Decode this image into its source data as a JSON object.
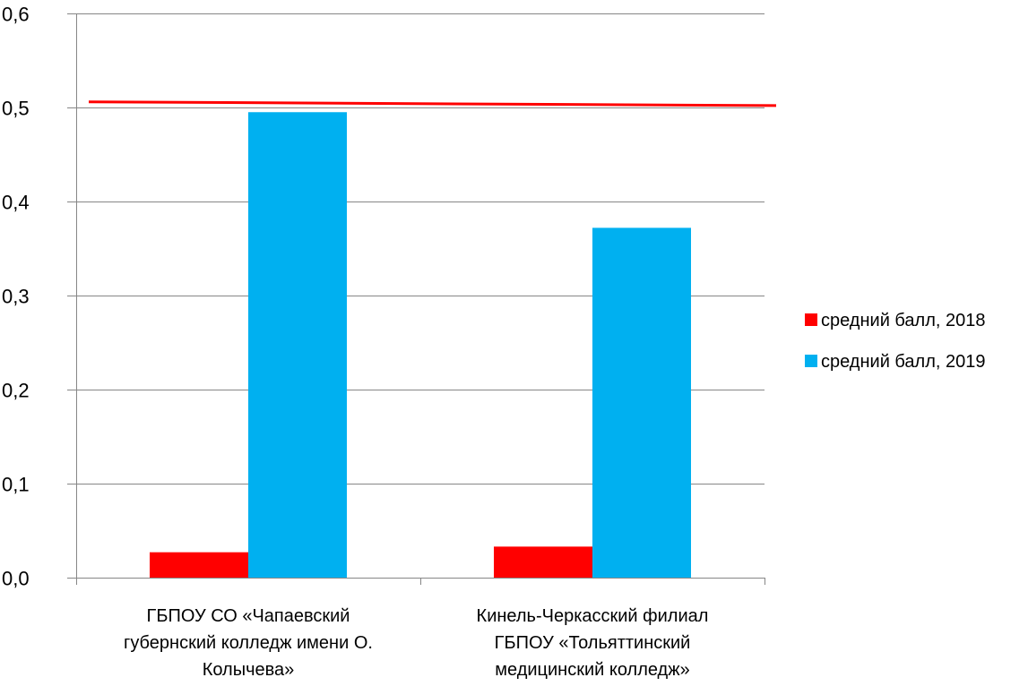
{
  "chart_data": {
    "type": "bar",
    "categories": [
      [
        "ГБПОУ СО «Чапаевский",
        "губернский колледж имени О.",
        "Колычева»"
      ],
      [
        "Кинель-Черкасский филиал",
        "ГБПОУ «Тольяттинский",
        "медицинский колледж»"
      ]
    ],
    "series": [
      {
        "name": "средний балл, 2018",
        "values": [
          0.027,
          0.033
        ],
        "color": "#ff0000"
      },
      {
        "name": "средний балл, 2019",
        "values": [
          0.495,
          0.372
        ],
        "color": "#00b0f0"
      }
    ],
    "reference_line": {
      "from": 0.506,
      "to": 0.502,
      "color": "#ff0000"
    },
    "ylim": [
      0,
      0.6
    ],
    "yticks": [
      {
        "value": 0,
        "label": "0,0"
      },
      {
        "value": 0.1,
        "label": "0,1"
      },
      {
        "value": 0.2,
        "label": "0,2"
      },
      {
        "value": 0.3,
        "label": "0,3"
      },
      {
        "value": 0.4,
        "label": "0,4"
      },
      {
        "value": 0.5,
        "label": "0,5"
      },
      {
        "value": 0.6,
        "label": "0,6"
      }
    ],
    "grid": true,
    "legend_position": "right",
    "gridline_color": "#868686"
  }
}
